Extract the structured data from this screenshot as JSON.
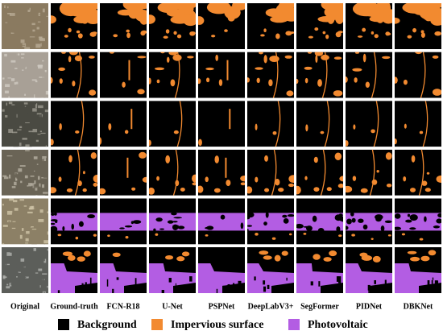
{
  "columns": [
    "Original",
    "Ground-truth",
    "FCN-R18",
    "U-Net",
    "PSPNet",
    "DeepLabV3+",
    "SegFormer",
    "PIDNet",
    "DBKNet"
  ],
  "legend": [
    {
      "label": "Background",
      "color": "#000000"
    },
    {
      "label": "Impervious surface",
      "color": "#f28a30"
    },
    {
      "label": "Photovoltaic",
      "color": "#b35de3"
    }
  ]
}
